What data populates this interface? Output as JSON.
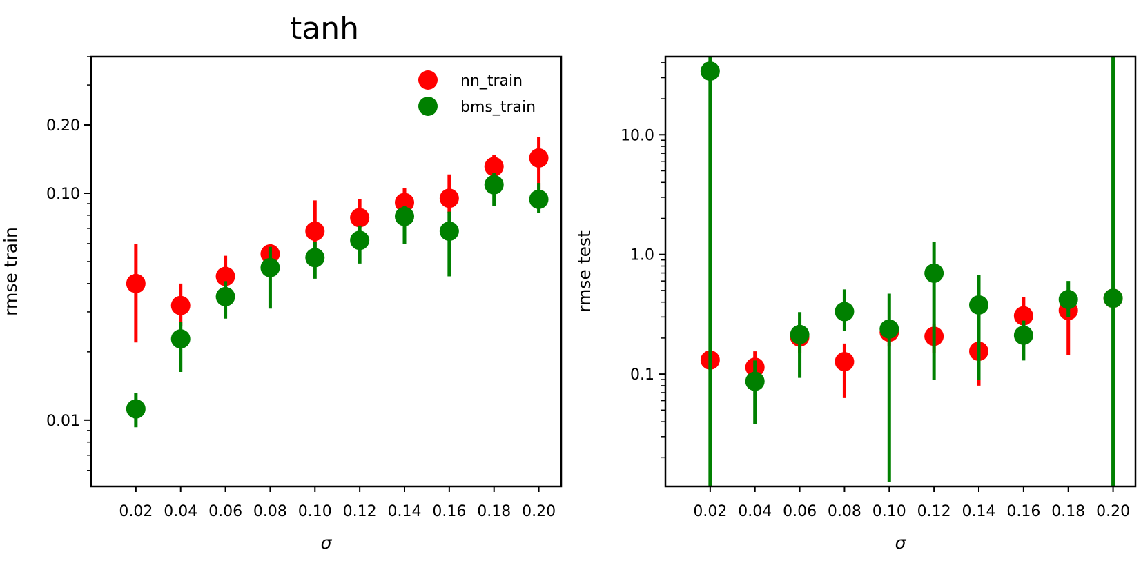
{
  "figure_title": "tanh",
  "colors": {
    "nn": "#ff0000",
    "bms": "#008000",
    "axis": "#000000"
  },
  "chart_data": [
    {
      "type": "scatter",
      "panel": "left",
      "title": "tanh",
      "xlabel": "σ",
      "ylabel": "rmse train",
      "yscale": "log",
      "ylim": [
        0.0051,
        0.4
      ],
      "xlim": [
        0.0,
        0.21
      ],
      "xticks": [
        0.02,
        0.04,
        0.06,
        0.08,
        0.1,
        0.12,
        0.14,
        0.16,
        0.18,
        0.2
      ],
      "xtick_labels": [
        "0.02",
        "0.04",
        "0.06",
        "0.08",
        "0.10",
        "0.12",
        "0.14",
        "0.16",
        "0.18",
        "0.20"
      ],
      "yticks": [
        0.01,
        0.1,
        0.2
      ],
      "ytick_labels": [
        "0.01",
        "0.10",
        "0.20"
      ],
      "grid": false,
      "legend": {
        "placement": "top-right",
        "entries": [
          "nn_train",
          "bms_train"
        ]
      },
      "series": [
        {
          "name": "nn_train",
          "color": "#ff0000",
          "x": [
            0.02,
            0.04,
            0.06,
            0.08,
            0.1,
            0.12,
            0.14,
            0.16,
            0.18,
            0.2
          ],
          "y": [
            0.04,
            0.032,
            0.043,
            0.054,
            0.068,
            0.078,
            0.091,
            0.095,
            0.131,
            0.143
          ],
          "err_low": [
            0.022,
            0.026,
            0.037,
            0.044,
            0.056,
            0.07,
            0.082,
            0.082,
            0.118,
            0.104
          ],
          "err_high": [
            0.06,
            0.04,
            0.053,
            0.06,
            0.093,
            0.094,
            0.105,
            0.121,
            0.148,
            0.177
          ]
        },
        {
          "name": "bms_train",
          "color": "#008000",
          "x": [
            0.02,
            0.04,
            0.06,
            0.08,
            0.1,
            0.12,
            0.14,
            0.16,
            0.18,
            0.2
          ],
          "y": [
            0.0112,
            0.0228,
            0.035,
            0.047,
            0.052,
            0.062,
            0.079,
            0.068,
            0.109,
            0.094
          ],
          "err_low": [
            0.0093,
            0.0163,
            0.028,
            0.031,
            0.042,
            0.049,
            0.06,
            0.043,
            0.088,
            0.082
          ],
          "err_high": [
            0.0132,
            0.027,
            0.041,
            0.058,
            0.061,
            0.072,
            0.088,
            0.083,
            0.123,
            0.111
          ]
        }
      ]
    },
    {
      "type": "scatter",
      "panel": "right",
      "xlabel": "σ",
      "ylabel": "rmse test",
      "yscale": "log",
      "ylim": [
        0.0115,
        45.0
      ],
      "xlim": [
        0.0,
        0.21
      ],
      "xticks": [
        0.02,
        0.04,
        0.06,
        0.08,
        0.1,
        0.12,
        0.14,
        0.16,
        0.18,
        0.2
      ],
      "xtick_labels": [
        "0.02",
        "0.04",
        "0.06",
        "0.08",
        "0.10",
        "0.12",
        "0.14",
        "0.16",
        "0.18",
        "0.20"
      ],
      "yticks": [
        0.1,
        1.0,
        10.0
      ],
      "ytick_labels": [
        "0.1",
        "1.0",
        "10.0"
      ],
      "grid": false,
      "series": [
        {
          "name": "",
          "color": "#ff0000",
          "x": [
            0.02,
            0.04,
            0.06,
            0.08,
            0.1,
            0.12,
            0.14,
            0.16,
            0.18,
            0.2
          ],
          "y": [
            0.131,
            0.114,
            0.204,
            0.127,
            0.224,
            0.207,
            0.155,
            0.307,
            0.34,
            0.43
          ],
          "err_low": [
            0.131,
            0.09,
            0.15,
            0.063,
            0.17,
            0.15,
            0.08,
            0.22,
            0.145,
            0.43
          ],
          "err_high": [
            0.131,
            0.155,
            0.25,
            0.18,
            0.28,
            0.26,
            0.2,
            0.44,
            0.44,
            0.43
          ]
        },
        {
          "name": "",
          "color": "#008000",
          "x": [
            0.02,
            0.04,
            0.06,
            0.08,
            0.1,
            0.12,
            0.14,
            0.16,
            0.18,
            0.2
          ],
          "y": [
            34.0,
            0.087,
            0.214,
            0.333,
            0.238,
            0.697,
            0.378,
            0.211,
            0.42,
            0.43
          ],
          "err_low": [
            0.0115,
            0.038,
            0.093,
            0.23,
            0.0125,
            0.09,
            0.09,
            0.13,
            0.3,
            0.0115
          ],
          "err_high": [
            45.0,
            0.13,
            0.33,
            0.51,
            0.47,
            1.28,
            0.67,
            0.28,
            0.6,
            45.0
          ]
        }
      ]
    }
  ]
}
